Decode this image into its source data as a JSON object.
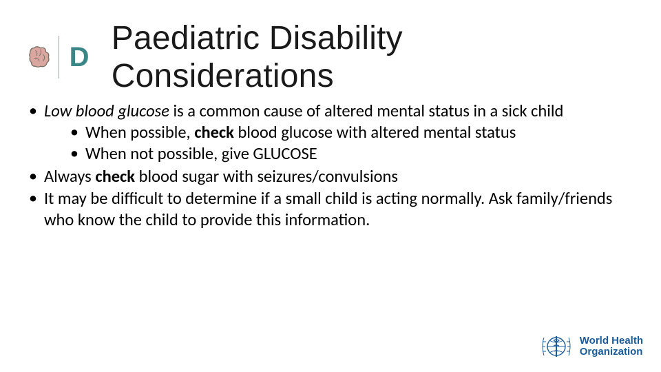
{
  "header": {
    "logo": {
      "brain_icon_name": "brain-icon",
      "letter": "D",
      "accent_color": "#3b8686",
      "brain_outline_color": "#7a6f65",
      "brain_fill_color": "#d9a7a0"
    },
    "title": "Paediatric Disability Considerations"
  },
  "body": {
    "font_size_pt": 18,
    "color": "#000000",
    "items": [
      {
        "runs": [
          {
            "text": "Low blood glucose",
            "italic": true
          },
          {
            "text": " is a common cause of altered mental status in a sick child"
          }
        ],
        "children": [
          {
            "runs": [
              {
                "text": "When possible, "
              },
              {
                "text": "check",
                "bold": true
              },
              {
                "text": " blood glucose with altered mental status"
              }
            ]
          },
          {
            "runs": [
              {
                "text": "When not possible, give GLUCOSE"
              }
            ]
          }
        ]
      },
      {
        "runs": [
          {
            "text": "Always "
          },
          {
            "text": "check",
            "bold": true
          },
          {
            "text": " blood sugar with seizures/convulsions"
          }
        ]
      },
      {
        "runs": [
          {
            "text": "It may be difficult to determine if a small child is acting normally. Ask family/friends who know the child to provide this information."
          }
        ]
      }
    ]
  },
  "footer": {
    "who": {
      "line1": "World Health",
      "line2": "Organization",
      "color": "#1a5b9a"
    }
  }
}
